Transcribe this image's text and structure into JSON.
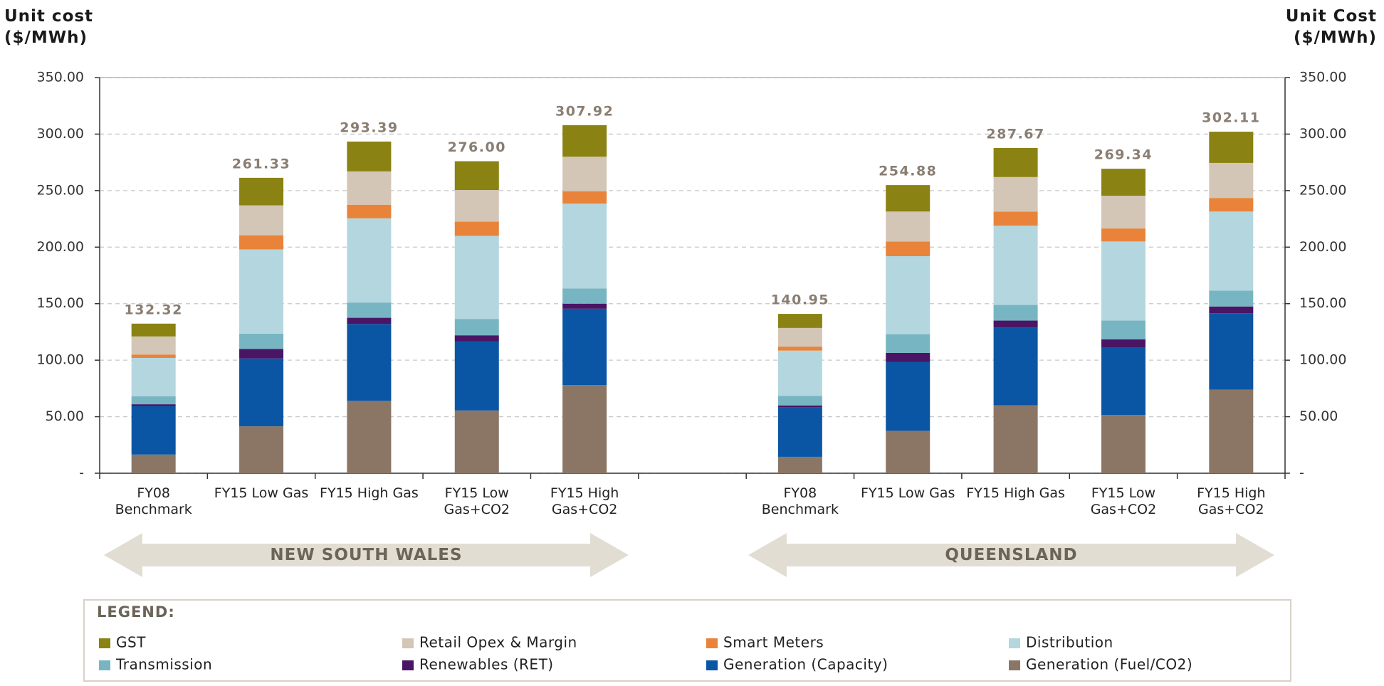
{
  "chart_data": {
    "type": "stacked-bar",
    "ylabel": "Unit cost ($/MWh)",
    "y2label": "Unit Cost ($/MWh)",
    "groups": [
      "NEW SOUTH WALES",
      "QUEENSLAND"
    ],
    "categories": [
      "FY08 Benchmark",
      "FY15 Low Gas",
      "FY15 High Gas",
      "FY15 Low Gas+CO2",
      "FY15 High Gas+CO2",
      "FY08 Benchmark",
      "FY15 Low Gas",
      "FY15 High Gas",
      "FY15 Low Gas+CO2",
      "FY15 High Gas+CO2"
    ],
    "legend_title": "LEGEND:",
    "series": [
      {
        "name": "GST",
        "color": "#8a8212",
        "values": [
          11.32,
          24.33,
          26.39,
          25.5,
          27.92,
          12.45,
          23.38,
          25.67,
          23.84,
          27.61
        ]
      },
      {
        "name": "Retail Opex & Margin",
        "color": "#d3c6b6",
        "values": [
          16,
          26.5,
          29.5,
          28,
          30.5,
          16.5,
          26.5,
          30.5,
          29,
          31
        ]
      },
      {
        "name": "Smart Meters",
        "color": "#e9833a",
        "values": [
          3,
          12.5,
          12,
          12.5,
          11,
          3.5,
          13,
          12.5,
          11.5,
          12
        ]
      },
      {
        "name": "Distribution",
        "color": "#b4d6df",
        "values": [
          34,
          74.5,
          74.5,
          73.5,
          75,
          40,
          69,
          70,
          70,
          70
        ]
      },
      {
        "name": "Transmission",
        "color": "#77b5c2",
        "values": [
          7,
          13.5,
          13.5,
          14.5,
          13.5,
          8.5,
          16.5,
          14,
          16.5,
          14
        ]
      },
      {
        "name": "Renewables (RET)",
        "color": "#4a1565",
        "values": [
          1.5,
          8.5,
          5.5,
          5.5,
          4.5,
          1.5,
          8,
          6,
          7.5,
          6
        ]
      },
      {
        "name": "Generation (Capacity)",
        "color": "#0b56a4",
        "values": [
          43,
          60,
          68,
          61,
          67.5,
          44,
          61,
          69,
          59.5,
          67.5
        ]
      },
      {
        "name": "Generation (Fuel/CO2)",
        "color": "#8b7666",
        "values": [
          16.5,
          41.5,
          64,
          55.5,
          78,
          14.5,
          37.5,
          60,
          51.5,
          74
        ]
      }
    ],
    "totals": [
      132.32,
      261.33,
      293.39,
      276,
      307.92,
      140.95,
      254.88,
      287.67,
      269.34,
      302.11
    ],
    "total_labels": [
      "132.32",
      "261.33",
      "293.39",
      "276.00",
      "307.92",
      "140.95",
      "254.88",
      "287.67",
      "269.34",
      "302.11"
    ],
    "ylim": [
      0,
      350
    ],
    "yticks": [
      {
        "value": 0,
        "label": "-"
      },
      {
        "value": 50,
        "label": "50.00"
      },
      {
        "value": 100,
        "label": "100.00"
      },
      {
        "value": 150,
        "label": "150.00"
      },
      {
        "value": 200,
        "label": "200.00"
      },
      {
        "value": 250,
        "label": "250.00"
      },
      {
        "value": 300,
        "label": "300.00"
      },
      {
        "value": 350,
        "label": "350.00"
      }
    ],
    "y2lim": [
      0,
      350
    ],
    "y2ticks": [
      {
        "value": 0,
        "label": "-"
      },
      {
        "value": 50,
        "label": "50.00"
      },
      {
        "value": 100,
        "label": "100.00"
      },
      {
        "value": 150,
        "label": "150.00"
      },
      {
        "value": 200,
        "label": "200.00"
      },
      {
        "value": 250,
        "label": "250.00"
      },
      {
        "value": 300,
        "label": "300.00"
      },
      {
        "value": 350,
        "label": "350.00"
      }
    ],
    "grid": true
  }
}
